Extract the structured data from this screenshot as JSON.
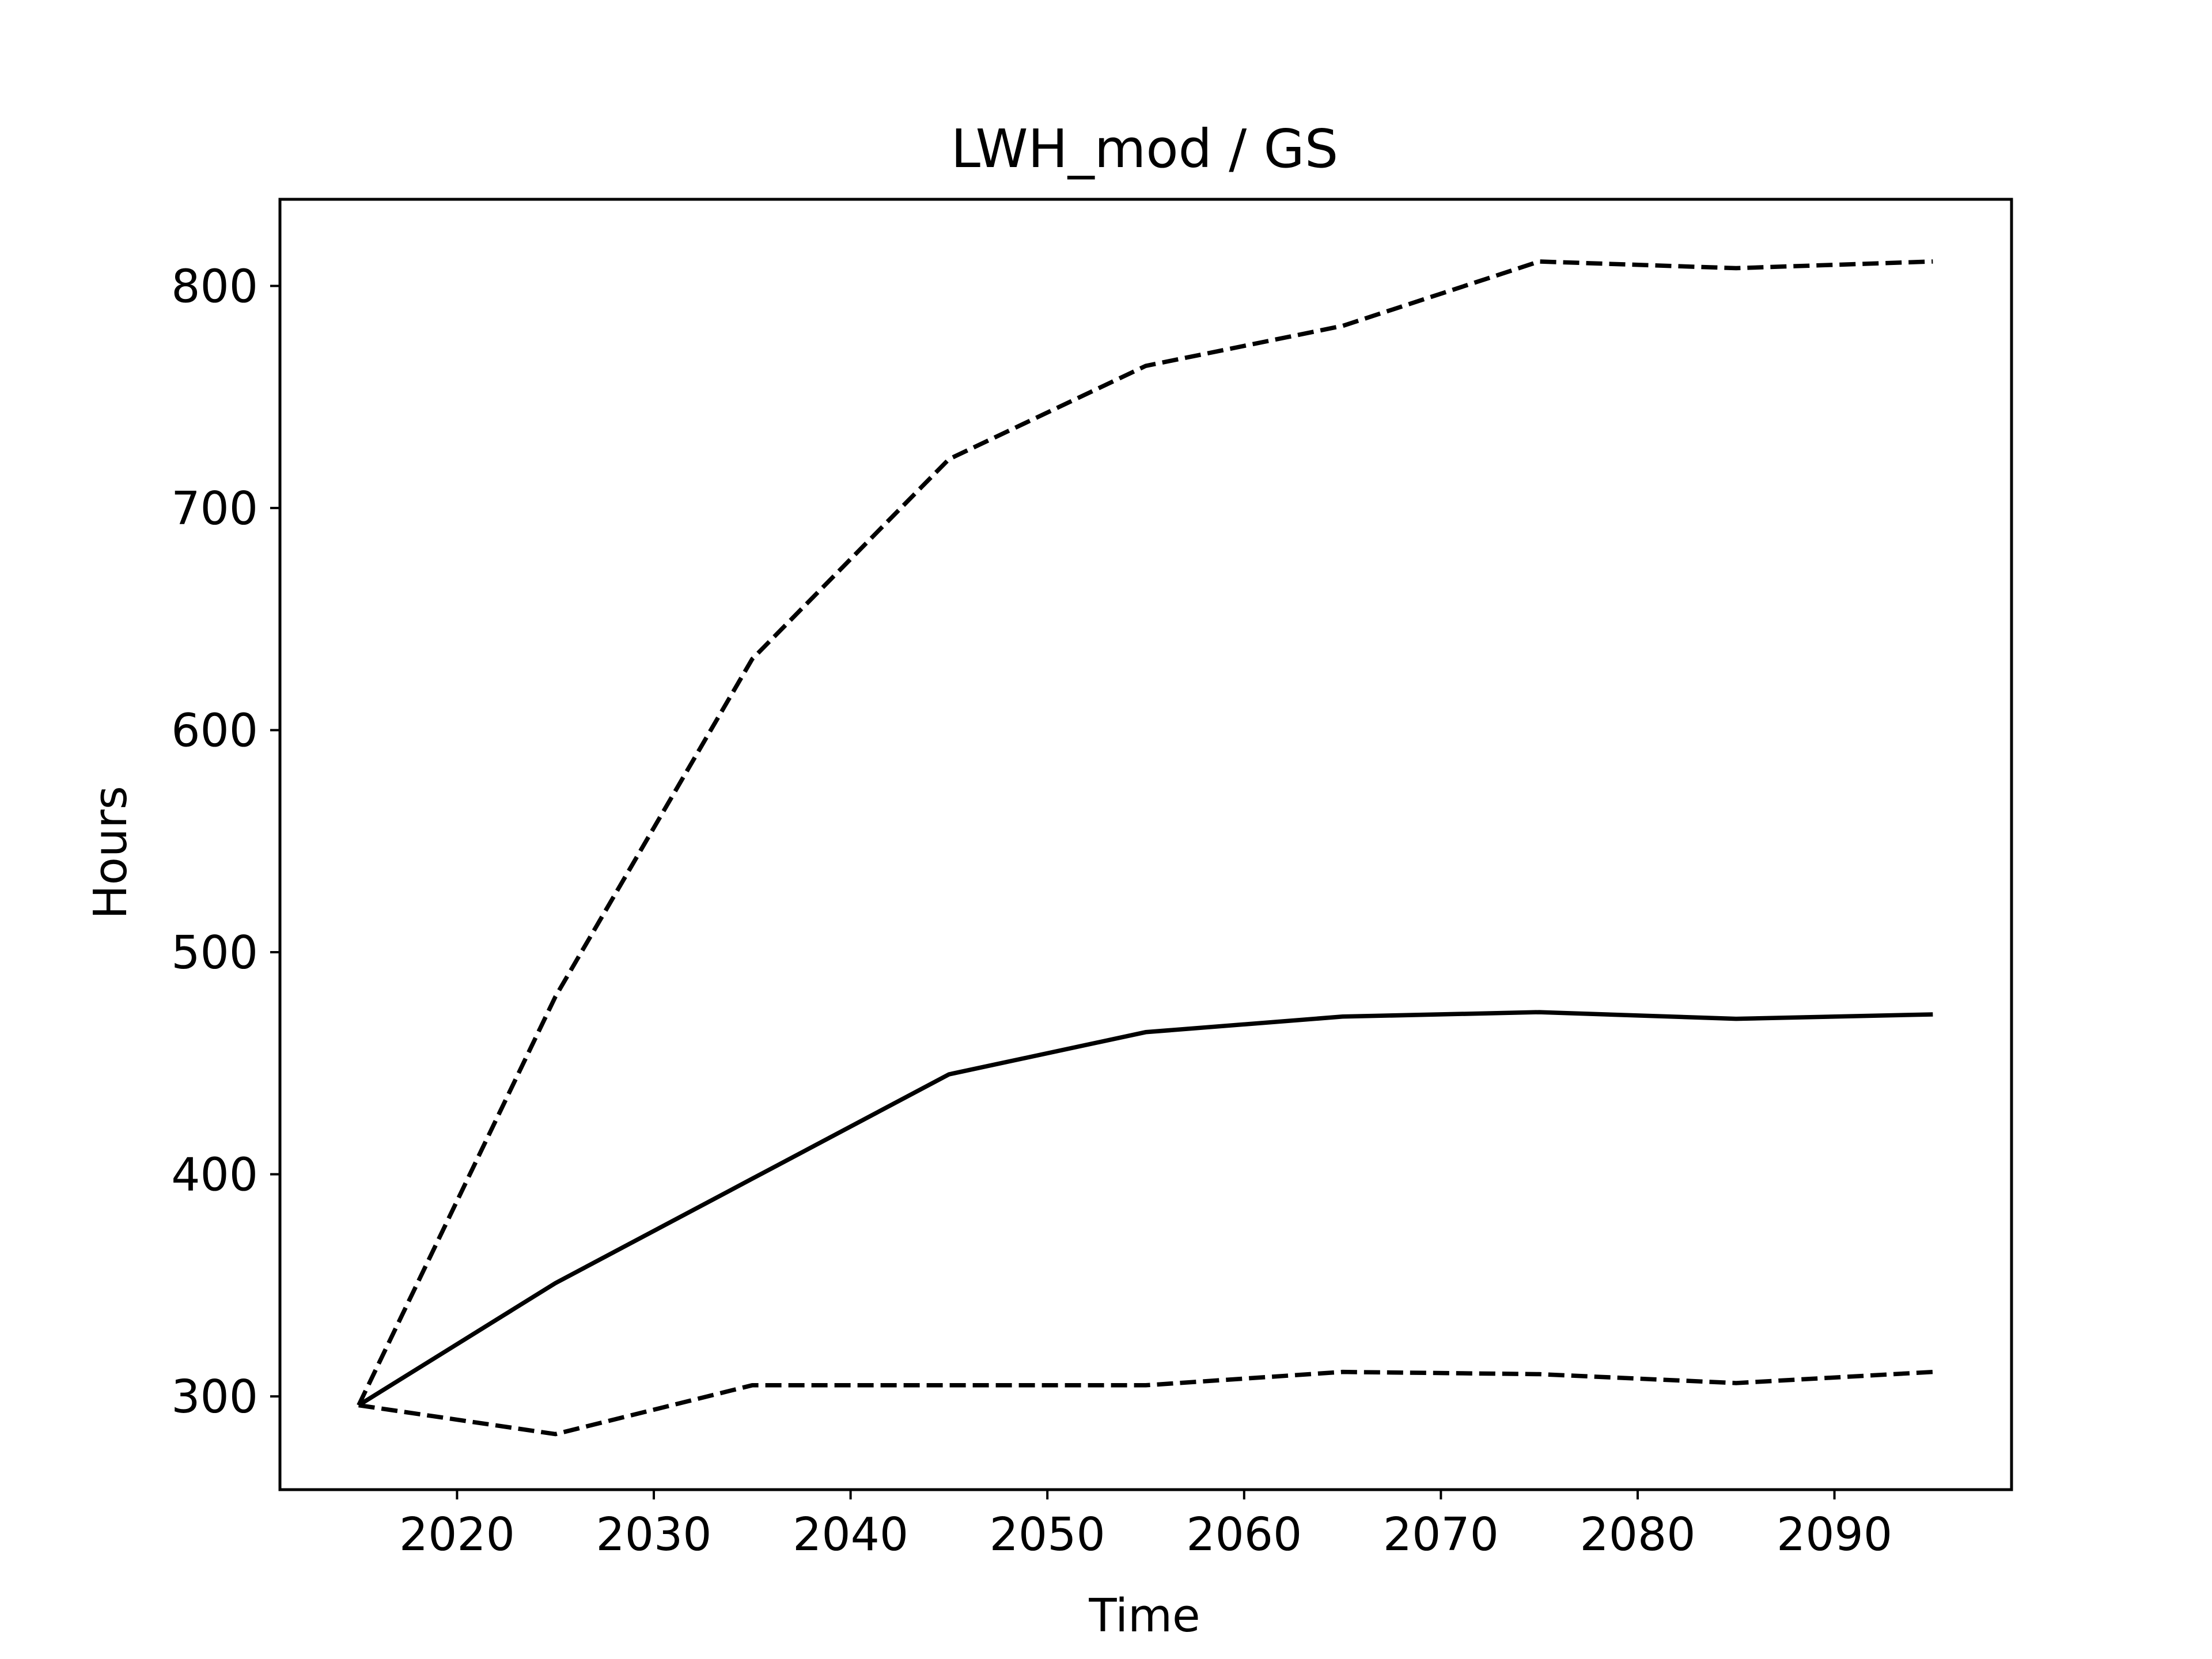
{
  "chart_data": {
    "type": "line",
    "title": "LWH_mod / GS",
    "xlabel": "Time",
    "ylabel": "Hours",
    "x": [
      2015,
      2025,
      2035,
      2045,
      2055,
      2065,
      2075,
      2085,
      2095
    ],
    "series": [
      {
        "style": "solid",
        "values": [
          296,
          351,
          398,
          445,
          464,
          471,
          473,
          470,
          472
        ]
      },
      {
        "style": "dashed",
        "values": [
          296,
          480,
          632,
          722,
          764,
          782,
          811,
          808,
          811
        ]
      },
      {
        "style": "dashed",
        "values": [
          296,
          283,
          305,
          305,
          305,
          311,
          310,
          306,
          311
        ]
      }
    ],
    "xlim": [
      2011,
      2099
    ],
    "ylim": [
      258,
      839
    ],
    "xticks": [
      2020,
      2030,
      2040,
      2050,
      2060,
      2070,
      2080,
      2090
    ],
    "yticks": [
      300,
      400,
      500,
      600,
      700,
      800
    ],
    "xtick_labels": [
      "2020",
      "2030",
      "2040",
      "2050",
      "2060",
      "2070",
      "2080",
      "2090"
    ],
    "ytick_labels": [
      "300",
      "400",
      "500",
      "600",
      "700",
      "800"
    ],
    "grid": false,
    "line_color": "#000000",
    "background": "#ffffff"
  }
}
